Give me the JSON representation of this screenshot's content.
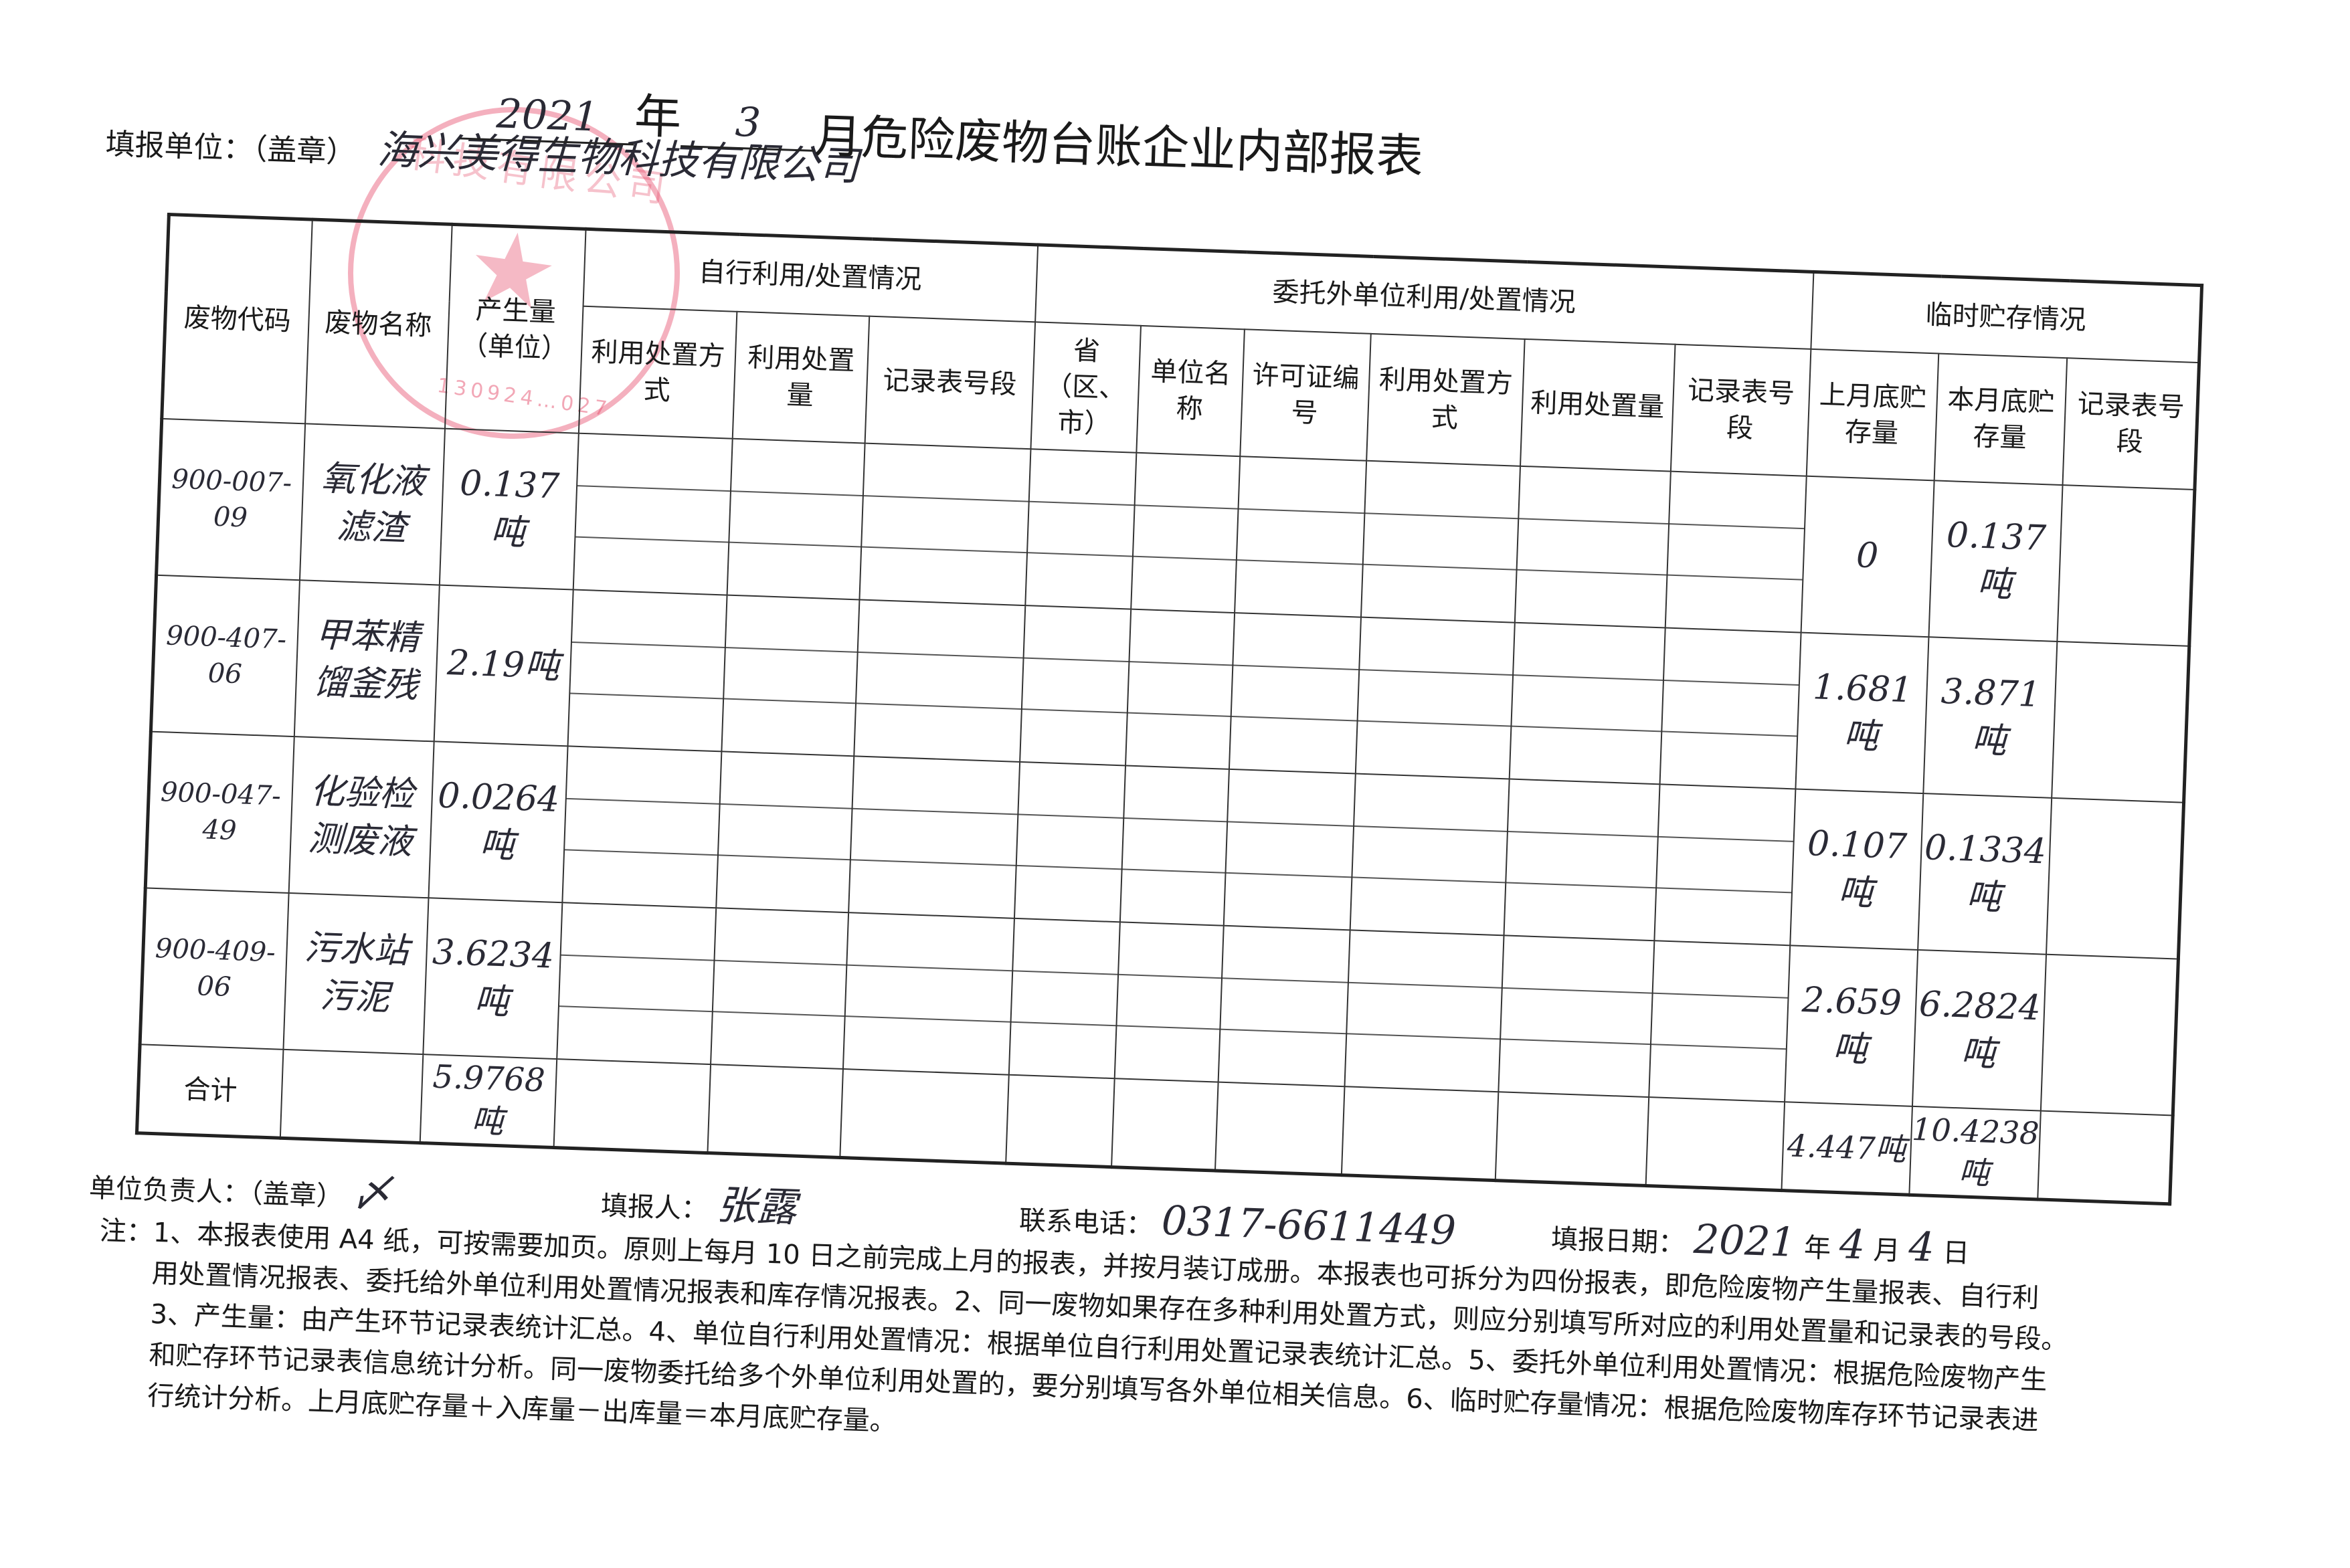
{
  "header": {
    "unit_label": "填报单位：（盖章）",
    "company_handwritten": "海兴美得生物科技有限公司",
    "year": "2021",
    "year_suffix": "年",
    "month": "3",
    "title_suffix": "月危险废物台账企业内部报表"
  },
  "stamp": {
    "text": "海兴美得生物科技有限公司",
    "number": "130924…027",
    "color": "#e6506e"
  },
  "table": {
    "headers": {
      "code": "废物代码",
      "name": "废物名称",
      "amount": "产生量（单位）",
      "self_group": "自行利用/处置情况",
      "self_cols": [
        "利用处置方 式",
        "利用处置量",
        "记录表号段"
      ],
      "ext_group": "委托外单位利用/处置情况",
      "ext_cols": [
        "省（区、市）",
        "单位名称",
        "许可证编号",
        "利用处置方 式",
        "利用处置量",
        "记录表号 段"
      ],
      "store_group": "临时贮存情况",
      "store_cols": [
        "上月底贮存量",
        "本月底贮存量",
        "记录表号段"
      ]
    },
    "rows": [
      {
        "code": "900-007-09",
        "name": "氧化液滤渣",
        "amount": "0.137吨",
        "last_month": "0",
        "this_month": "0.137吨"
      },
      {
        "code": "900-407-06",
        "name": "甲苯精馏釜残",
        "amount": "2.19吨",
        "last_month": "1.681吨",
        "this_month": "3.871吨"
      },
      {
        "code": "900-047-49",
        "name": "化验检测废液",
        "amount": "0.0264吨",
        "last_month": "0.107吨",
        "this_month": "0.1334吨"
      },
      {
        "code": "900-409-06",
        "name": "污水站污泥",
        "amount": "3.6234吨",
        "last_month": "2.659吨",
        "this_month": "6.2824吨"
      }
    ],
    "total_label": "合计",
    "total_amount": "5.9768吨",
    "total_last_month": "4.447吨",
    "total_this_month": "10.4238吨"
  },
  "footer": {
    "head_label": "单位负责人：（盖章）",
    "filler_label": "填报人：",
    "filler": "张露",
    "phone_label": "联系电话：",
    "phone": "0317-6611449",
    "date_label": "填报日期：",
    "date_year": "2021",
    "year_char": "年",
    "date_month": "4",
    "month_char": "月",
    "date_day": "4",
    "day_char": "日"
  },
  "notes": [
    "注：1、本报表使用 A4 纸，可按需要加页。原则上每月 10 日之前完成上月的报表，并按月装订成册。本报表也可拆分为四份报表，即危险废物产生量报表、自行利",
    "用处置情况报表、委托给外单位利用处置情况报表和库存情况报表。2、同一废物如果存在多种利用处置方式，则应分别填写所对应的利用处置量和记录表的号段。",
    "3、产生量：由产生环节记录表统计汇总。4、单位自行利用处置情况：根据单位自行利用处置记录表统计汇总。5、委托外单位利用处置情况：根据危险废物产生",
    "和贮存环节记录表信息统计分析。同一废物委托给多个外单位利用处置的，要分别填写各外单位相关信息。6、临时贮存量情况：根据危险废物库存环节记录表进",
    "行统计分析。上月底贮存量＋入库量－出库量＝本月底贮存量。"
  ]
}
